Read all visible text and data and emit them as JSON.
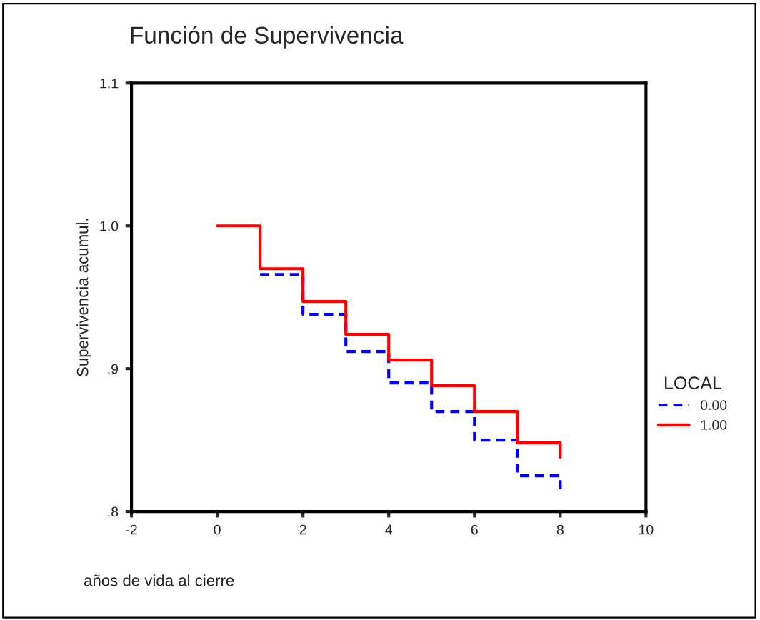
{
  "chart_data": {
    "type": "step",
    "title": "Función de Supervivencia",
    "xlabel": "años de vida al cierre",
    "ylabel": "Supervivencia acumul.",
    "legend_title": "LOCAL",
    "legend": "right",
    "x": [
      0,
      1,
      2,
      3,
      4,
      5,
      6,
      7,
      8,
      8
    ],
    "series": [
      {
        "name": "0.00",
        "color": "#0000ff",
        "line_style": "dashed",
        "values": [
          null,
          0.966,
          0.938,
          0.912,
          0.89,
          0.87,
          0.85,
          0.825,
          0.825,
          0.815
        ]
      },
      {
        "name": "1.00",
        "color": "#ff0000",
        "line_style": "solid",
        "values": [
          1.0,
          0.97,
          0.947,
          0.924,
          0.906,
          0.888,
          0.87,
          0.848,
          0.848,
          0.838
        ]
      }
    ],
    "xlim": [
      -2,
      10
    ],
    "xticks": [
      -2,
      0,
      2,
      4,
      6,
      8,
      10
    ],
    "ylim": [
      0.8,
      1.1
    ],
    "yticks": [
      {
        "value": 0.8,
        "label": ".8"
      },
      {
        "value": 0.9,
        "label": ".9"
      },
      {
        "value": 1.0,
        "label": "1.0"
      },
      {
        "value": 1.1,
        "label": "1.1"
      }
    ],
    "grid": false
  }
}
